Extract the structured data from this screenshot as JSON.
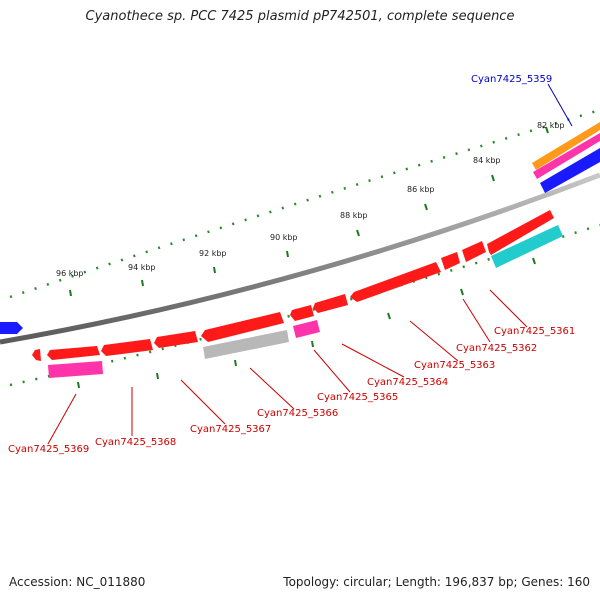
{
  "title": "Cyanothece sp. PCC 7425 plasmid pP742501, complete sequence",
  "footer": {
    "accession": "Accession: NC_011880",
    "topology": "Topology: circular; Length: 196,837 bp; Genes: 160"
  },
  "colors": {
    "forward_cds": "#ff1a1a",
    "reverse_cds": "#ff1a1a",
    "grey_feature": "#b8b8b8",
    "magenta": "#ff33aa",
    "cyan": "#22cccc",
    "blue": "#1a1aff",
    "orange": "#ff9a1a",
    "backbone": "#888888",
    "tick": "#2a8a2a",
    "red_label": "#cc0000",
    "blue_label": "#0000cc"
  },
  "kbp_labels": [
    "82 kbp",
    "84 kbp",
    "86 kbp",
    "88 kbp",
    "90 kbp",
    "92 kbp",
    "94 kbp",
    "96 kbp"
  ],
  "gene_labels": [
    {
      "name": "Cyan7425_5359",
      "color": "blue"
    },
    {
      "name": "Cyan7425_5361",
      "color": "red"
    },
    {
      "name": "Cyan7425_5362",
      "color": "red"
    },
    {
      "name": "Cyan7425_5363",
      "color": "red"
    },
    {
      "name": "Cyan7425_5364",
      "color": "red"
    },
    {
      "name": "Cyan7425_5365",
      "color": "red"
    },
    {
      "name": "Cyan7425_5366",
      "color": "red"
    },
    {
      "name": "Cyan7425_5367",
      "color": "red"
    },
    {
      "name": "Cyan7425_5368",
      "color": "red"
    },
    {
      "name": "Cyan7425_5369",
      "color": "red"
    }
  ]
}
